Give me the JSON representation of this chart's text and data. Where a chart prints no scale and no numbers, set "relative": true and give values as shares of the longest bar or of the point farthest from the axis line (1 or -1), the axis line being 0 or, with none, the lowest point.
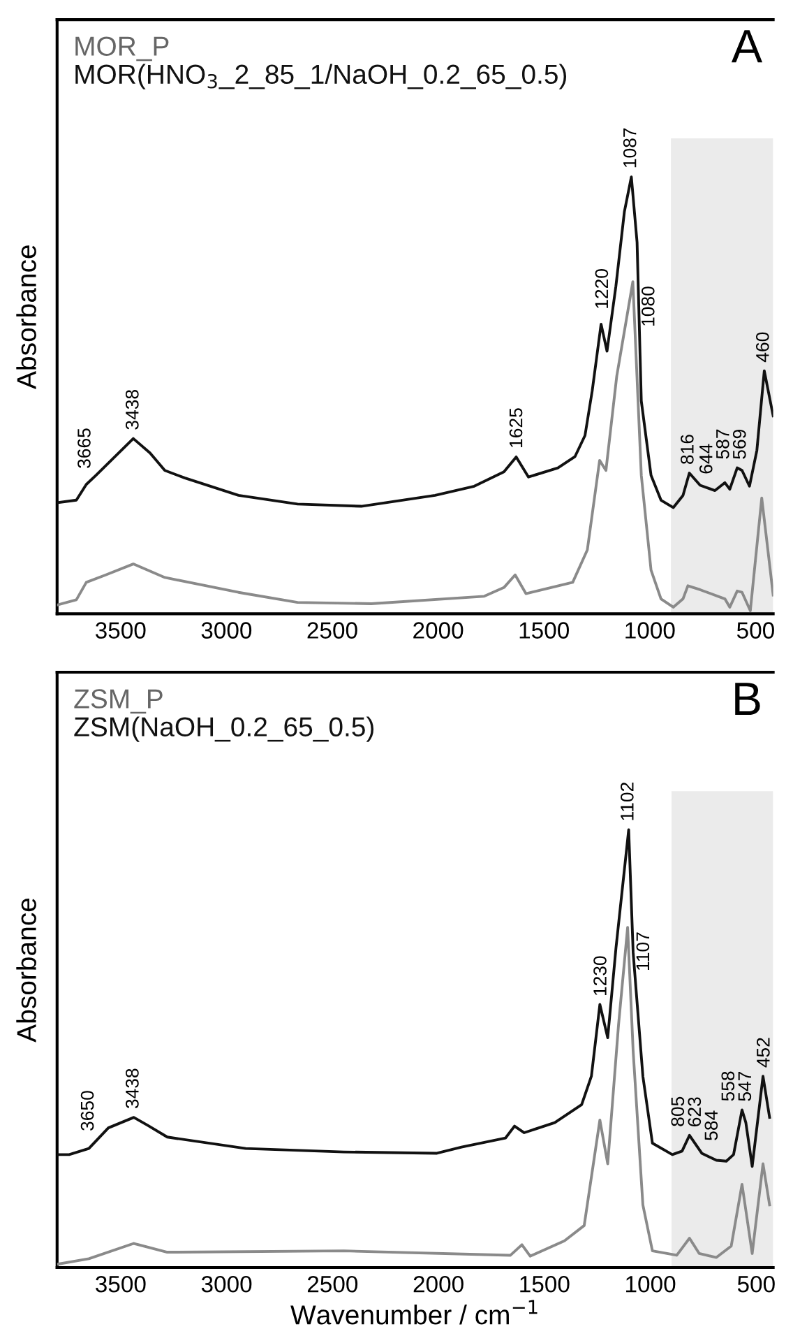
{
  "chart_data": [
    {
      "type": "line",
      "relative": true,
      "ylabel": "Absorbance",
      "xlim": [
        3800,
        417
      ],
      "xticks": [
        3500,
        3000,
        2500,
        2000,
        1500,
        1000,
        500
      ],
      "tick_labels": "x",
      "grid": false,
      "legend": "top left",
      "bands": [
        {
          "axis": "x",
          "from": 900,
          "to": 417,
          "color": "#ebebeb"
        }
      ],
      "series": [
        {
          "name": "MOR_P",
          "color": "#8a8a8a",
          "x": [
            3800,
            3709,
            3662,
            3570,
            3440,
            3291,
            2943,
            2664,
            2316,
            1782,
            1689,
            1636,
            1585,
            1364,
            1295,
            1237,
            1207,
            1156,
            1080,
            1040,
            994,
            947,
            889,
            843,
            820,
            762,
            645,
            622,
            587,
            564,
            525,
            471,
            417
          ],
          "values": [
            0.02,
            0.032,
            0.072,
            0.089,
            0.114,
            0.083,
            0.049,
            0.026,
            0.023,
            0.04,
            0.06,
            0.089,
            0.046,
            0.072,
            0.146,
            0.351,
            0.328,
            0.544,
            0.76,
            0.317,
            0.1,
            0.034,
            0.015,
            0.034,
            0.064,
            0.055,
            0.034,
            0.015,
            0.052,
            0.049,
            0.007,
            0.265,
            0.043
          ]
        },
        {
          "name": "MOR(HNO$_{3}$_2_85_1/NaOH_0.2_65_0.5)",
          "color": "#111111",
          "x": [
            3800,
            3709,
            3662,
            3616,
            3440,
            3361,
            3291,
            3198,
            2943,
            2664,
            2363,
            2014,
            1829,
            1689,
            1631,
            1573,
            1434,
            1353,
            1306,
            1272,
            1230,
            1202,
            1160,
            1120,
            1087,
            1060,
            1040,
            994,
            947,
            889,
            843,
            813,
            762,
            692,
            645,
            622,
            587,
            564,
            529,
            494,
            459,
            417
          ],
          "values": [
            0.254,
            0.26,
            0.296,
            0.317,
            0.401,
            0.368,
            0.328,
            0.311,
            0.271,
            0.251,
            0.246,
            0.271,
            0.292,
            0.325,
            0.359,
            0.313,
            0.334,
            0.36,
            0.408,
            0.51,
            0.663,
            0.601,
            0.75,
            0.92,
            1.0,
            0.85,
            0.487,
            0.317,
            0.26,
            0.243,
            0.271,
            0.322,
            0.294,
            0.282,
            0.3,
            0.285,
            0.334,
            0.328,
            0.292,
            0.374,
            0.556,
            0.453
          ]
        }
      ],
      "annotations": [
        "A",
        {
          "text": "3665",
          "x": 3665,
          "y": 0.3
        },
        {
          "text": "3438",
          "x": 3438,
          "y": 0.401
        },
        {
          "text": "1625",
          "x": 1625,
          "y": 0.359
        },
        {
          "text": "1220",
          "x": 1220,
          "y": 0.663
        },
        {
          "text": "1087",
          "x": 1087,
          "y": 1.0
        },
        {
          "text": "1080",
          "x": 1080,
          "y": 0.76
        },
        {
          "text": "816",
          "x": 816,
          "y": 0.322
        },
        {
          "text": "644",
          "x": 644,
          "y": 0.3
        },
        {
          "text": "587",
          "x": 587,
          "y": 0.334
        },
        {
          "text": "569",
          "x": 569,
          "y": 0.328
        },
        {
          "text": "460",
          "x": 460,
          "y": 0.556
        }
      ]
    },
    {
      "type": "line",
      "relative": true,
      "ylabel": "Absorbance",
      "xlabel": "Wavenumber / cm$^{−1}$",
      "xlim": [
        3800,
        420
      ],
      "xticks": [
        3500,
        3000,
        2500,
        2000,
        1500,
        1000,
        500
      ],
      "tick_labels": "x",
      "grid": false,
      "legend": "top left",
      "bands": [
        {
          "axis": "x",
          "from": 900,
          "to": 420,
          "color": "#ebebeb"
        }
      ],
      "series": [
        {
          "name": "ZSM_P",
          "color": "#8a8a8a",
          "x": [
            3794,
            3650,
            3438,
            3280,
            2447,
            1660,
            1606,
            1567,
            1405,
            1312,
            1238,
            1201,
            1150,
            1107,
            1081,
            1035,
            990,
            875,
            815,
            769,
            688,
            618,
            567,
            519,
            468,
            437
          ],
          "values": [
            0.008,
            0.02,
            0.055,
            0.035,
            0.038,
            0.028,
            0.052,
            0.026,
            0.061,
            0.096,
            0.337,
            0.237,
            0.554,
            0.777,
            0.495,
            0.143,
            0.038,
            0.028,
            0.067,
            0.032,
            0.023,
            0.049,
            0.19,
            0.032,
            0.237,
            0.143
          ]
        },
        {
          "name": "ZSM(NaOH_0.2_65_0.5)",
          "color": "#111111",
          "x": [
            3794,
            3743,
            3650,
            3558,
            3438,
            3373,
            3280,
            2910,
            2447,
            2007,
            1891,
            1683,
            1641,
            1595,
            1451,
            1324,
            1278,
            1238,
            1201,
            1162,
            1102,
            1081,
            1035,
            990,
            896,
            850,
            815,
            757,
            688,
            641,
            607,
            567,
            549,
            519,
            468,
            437
          ],
          "values": [
            0.258,
            0.258,
            0.272,
            0.319,
            0.343,
            0.325,
            0.298,
            0.272,
            0.264,
            0.261,
            0.275,
            0.296,
            0.323,
            0.308,
            0.331,
            0.372,
            0.437,
            0.601,
            0.525,
            0.73,
            1.0,
            0.72,
            0.437,
            0.284,
            0.258,
            0.266,
            0.302,
            0.261,
            0.245,
            0.243,
            0.258,
            0.36,
            0.331,
            0.231,
            0.437,
            0.343
          ]
        }
      ],
      "annotations": [
        "B",
        {
          "text": "3650",
          "x": 3650,
          "y": 0.272
        },
        {
          "text": "3438",
          "x": 3438,
          "y": 0.343
        },
        {
          "text": "1230",
          "x": 1230,
          "y": 0.6
        },
        {
          "text": "1102",
          "x": 1102,
          "y": 1.0
        },
        {
          "text": "1107",
          "x": 1107,
          "y": 0.777
        },
        {
          "text": "805",
          "x": 805,
          "y": 0.302
        },
        {
          "text": "623",
          "x": 623,
          "y": 0.25
        },
        {
          "text": "584",
          "x": 584,
          "y": 0.27
        },
        {
          "text": "558",
          "x": 558,
          "y": 0.36
        },
        {
          "text": "547",
          "x": 547,
          "y": 0.331
        },
        {
          "text": "452",
          "x": 452,
          "y": 0.437
        }
      ]
    }
  ]
}
